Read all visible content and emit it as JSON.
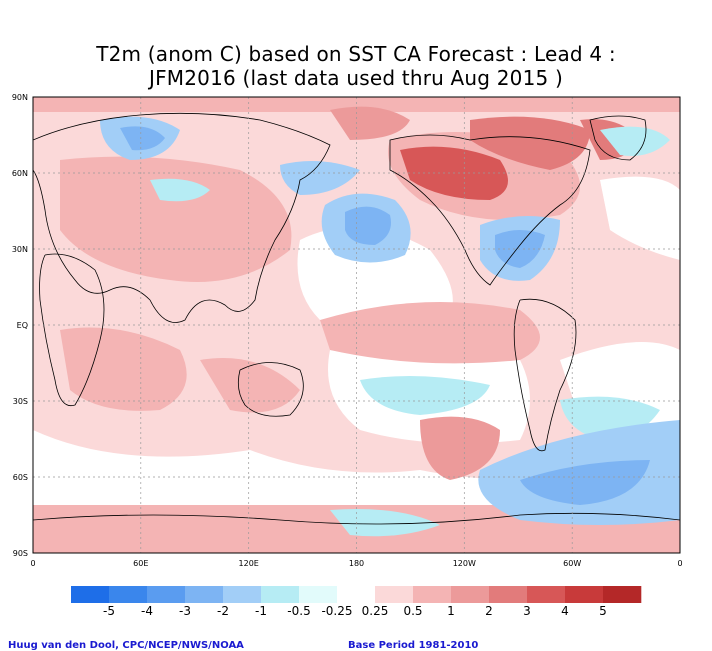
{
  "title": {
    "line1": "T2m (anom C) based on SST CA Forecast : Lead 4 :",
    "line2": "JFM2016 (last data used thru Aug 2015 )"
  },
  "map": {
    "lat_ticks": [
      "90N",
      "60N",
      "30N",
      "EQ",
      "30S",
      "60S",
      "90S"
    ],
    "lon_ticks": [
      "0",
      "60E",
      "120E",
      "180",
      "120W",
      "60W",
      "0"
    ],
    "projection": "cylindrical equidistant, 0 to 360 longitude",
    "gridlines": "dotted grey at 60 degree longitude and 30 degree latitude"
  },
  "legend": {
    "labels": [
      "-5",
      "-4",
      "-3",
      "-2",
      "-1",
      "-0.5",
      "-0.25",
      "0.25",
      "0.5",
      "1",
      "2",
      "3",
      "4",
      "5"
    ],
    "colors": [
      "#1e6ee8",
      "#3a86ec",
      "#5a9cf0",
      "#7db4f3",
      "#a2cef7",
      "#b6ecf4",
      "#e2fbfb",
      "#ffffff",
      "#fbd9d9",
      "#f4b4b4",
      "#ec9a9a",
      "#e27b7b",
      "#d75757",
      "#c83a3a",
      "#b42828"
    ]
  },
  "footer": {
    "credit": "Huug van den Dool, CPC/NCEP/NWS/NOAA",
    "base_period": "Base Period 1981-2010"
  }
}
